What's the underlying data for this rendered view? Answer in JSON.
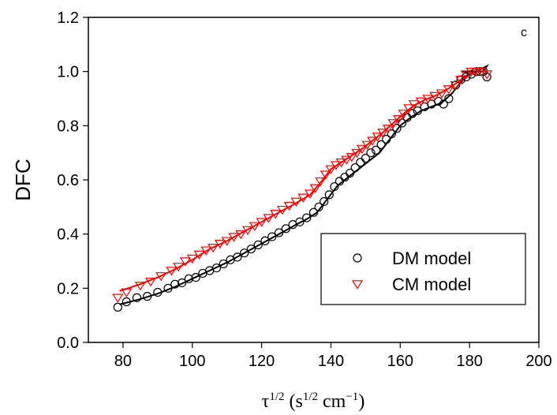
{
  "chart_data": {
    "type": "scatter",
    "panel_label": "c",
    "xlabel": {
      "tau": "τ",
      "tau_exp": "1/2",
      "open": " (s",
      "s_exp": "1/2",
      "cm": " cm",
      "cm_exp": "−1",
      "close": ")"
    },
    "ylabel": "DFC",
    "xlim": [
      70,
      200
    ],
    "ylim": [
      0.0,
      1.2
    ],
    "xticks": [
      "80",
      "100",
      "120",
      "140",
      "160",
      "180",
      "200"
    ],
    "yticks": [
      "0.0",
      "0.2",
      "0.4",
      "0.6",
      "0.8",
      "1.0",
      "1.2"
    ],
    "legend": {
      "position": "lower-right"
    },
    "series": [
      {
        "name": "DM model",
        "marker": "circle",
        "color": "#000000",
        "points": [
          [
            78.5,
            0.13
          ],
          [
            81,
            0.15
          ],
          [
            84,
            0.165
          ],
          [
            87,
            0.17
          ],
          [
            90,
            0.185
          ],
          [
            93,
            0.2
          ],
          [
            95,
            0.215
          ],
          [
            97,
            0.22
          ],
          [
            99,
            0.235
          ],
          [
            101,
            0.24
          ],
          [
            103,
            0.255
          ],
          [
            105,
            0.265
          ],
          [
            107,
            0.275
          ],
          [
            109,
            0.29
          ],
          [
            111,
            0.305
          ],
          [
            113,
            0.315
          ],
          [
            115,
            0.33
          ],
          [
            117,
            0.345
          ],
          [
            119,
            0.36
          ],
          [
            121,
            0.375
          ],
          [
            123,
            0.39
          ],
          [
            125,
            0.405
          ],
          [
            127,
            0.42
          ],
          [
            129,
            0.435
          ],
          [
            131,
            0.445
          ],
          [
            133,
            0.46
          ],
          [
            135,
            0.48
          ],
          [
            136.5,
            0.5
          ],
          [
            138,
            0.52
          ],
          [
            139.5,
            0.545
          ],
          [
            141,
            0.575
          ],
          [
            142.5,
            0.595
          ],
          [
            144,
            0.61
          ],
          [
            145.5,
            0.625
          ],
          [
            147,
            0.645
          ],
          [
            148.5,
            0.665
          ],
          [
            150,
            0.68
          ],
          [
            151.5,
            0.7
          ],
          [
            153,
            0.71
          ],
          [
            154.5,
            0.73
          ],
          [
            156,
            0.75
          ],
          [
            157.5,
            0.77
          ],
          [
            159,
            0.79
          ],
          [
            160.5,
            0.81
          ],
          [
            162,
            0.83
          ],
          [
            163.5,
            0.845
          ],
          [
            165,
            0.855
          ],
          [
            167,
            0.87
          ],
          [
            169,
            0.88
          ],
          [
            171,
            0.89
          ],
          [
            172.5,
            0.88
          ],
          [
            174,
            0.9
          ],
          [
            176,
            0.95
          ],
          [
            177.5,
            0.97
          ],
          [
            179,
            0.98
          ],
          [
            180.5,
            0.99
          ],
          [
            182,
            1.0
          ],
          [
            183,
            1.0
          ],
          [
            184,
            1.0
          ],
          [
            185,
            0.98
          ]
        ],
        "curve": [
          [
            79,
            0.14
          ],
          [
            85,
            0.16
          ],
          [
            90,
            0.18
          ],
          [
            95,
            0.205
          ],
          [
            100,
            0.235
          ],
          [
            105,
            0.265
          ],
          [
            110,
            0.295
          ],
          [
            115,
            0.33
          ],
          [
            120,
            0.365
          ],
          [
            125,
            0.4
          ],
          [
            130,
            0.435
          ],
          [
            133,
            0.455
          ],
          [
            136,
            0.48
          ],
          [
            139,
            0.53
          ],
          [
            142,
            0.58
          ],
          [
            145,
            0.61
          ],
          [
            148,
            0.64
          ],
          [
            151,
            0.67
          ],
          [
            154,
            0.7
          ],
          [
            157,
            0.75
          ],
          [
            160,
            0.8
          ],
          [
            163,
            0.83
          ],
          [
            166,
            0.855
          ],
          [
            169,
            0.87
          ],
          [
            172,
            0.885
          ],
          [
            175,
            0.92
          ],
          [
            178,
            0.97
          ],
          [
            180,
            0.99
          ],
          [
            182,
            1.0
          ],
          [
            185,
            1.02
          ],
          [
            184,
            1.0
          ],
          [
            182,
            1.0
          ],
          [
            179,
            1.0
          ],
          [
            178,
            1.0
          ]
        ]
      },
      {
        "name": "CM model",
        "marker": "triangle-down",
        "color": "#ff0000",
        "points": [
          [
            78.5,
            0.165
          ],
          [
            81,
            0.185
          ],
          [
            85,
            0.21
          ],
          [
            88,
            0.225
          ],
          [
            91,
            0.245
          ],
          [
            94,
            0.265
          ],
          [
            96,
            0.28
          ],
          [
            98,
            0.3
          ],
          [
            100,
            0.31
          ],
          [
            102,
            0.325
          ],
          [
            104,
            0.34
          ],
          [
            106,
            0.35
          ],
          [
            108,
            0.365
          ],
          [
            110,
            0.375
          ],
          [
            112,
            0.39
          ],
          [
            114,
            0.4
          ],
          [
            116,
            0.415
          ],
          [
            118,
            0.43
          ],
          [
            120,
            0.445
          ],
          [
            122,
            0.46
          ],
          [
            124,
            0.475
          ],
          [
            126,
            0.49
          ],
          [
            128,
            0.505
          ],
          [
            130,
            0.52
          ],
          [
            132,
            0.535
          ],
          [
            134,
            0.55
          ],
          [
            135.5,
            0.57
          ],
          [
            137,
            0.595
          ],
          [
            138.5,
            0.62
          ],
          [
            140,
            0.64
          ],
          [
            141.5,
            0.655
          ],
          [
            143,
            0.665
          ],
          [
            144.5,
            0.675
          ],
          [
            146,
            0.685
          ],
          [
            147.5,
            0.7
          ],
          [
            149,
            0.715
          ],
          [
            150.5,
            0.73
          ],
          [
            152,
            0.745
          ],
          [
            153.5,
            0.76
          ],
          [
            155,
            0.775
          ],
          [
            156.5,
            0.79
          ],
          [
            158,
            0.81
          ],
          [
            159.5,
            0.825
          ],
          [
            161,
            0.845
          ],
          [
            162.5,
            0.865
          ],
          [
            164,
            0.88
          ],
          [
            166,
            0.89
          ],
          [
            168,
            0.9
          ],
          [
            170,
            0.91
          ],
          [
            172,
            0.92
          ],
          [
            174,
            0.935
          ],
          [
            176,
            0.95
          ],
          [
            177.5,
            0.97
          ],
          [
            179,
            0.99
          ],
          [
            180.5,
            1.0
          ],
          [
            182,
            1.0
          ],
          [
            183.5,
            1.0
          ],
          [
            185,
            0.99
          ]
        ],
        "curve": [
          [
            79,
            0.19
          ],
          [
            85,
            0.215
          ],
          [
            90,
            0.24
          ],
          [
            95,
            0.27
          ],
          [
            100,
            0.305
          ],
          [
            105,
            0.345
          ],
          [
            110,
            0.375
          ],
          [
            115,
            0.41
          ],
          [
            120,
            0.445
          ],
          [
            125,
            0.48
          ],
          [
            130,
            0.515
          ],
          [
            134,
            0.545
          ],
          [
            137,
            0.59
          ],
          [
            140,
            0.64
          ],
          [
            143,
            0.665
          ],
          [
            146,
            0.69
          ],
          [
            149,
            0.715
          ],
          [
            152,
            0.745
          ],
          [
            155,
            0.775
          ],
          [
            158,
            0.81
          ],
          [
            161,
            0.845
          ],
          [
            164,
            0.875
          ],
          [
            167,
            0.895
          ],
          [
            170,
            0.91
          ],
          [
            173,
            0.93
          ],
          [
            176,
            0.955
          ],
          [
            179,
            0.985
          ],
          [
            182,
            1.0
          ],
          [
            185,
            1.0
          ]
        ]
      }
    ]
  }
}
